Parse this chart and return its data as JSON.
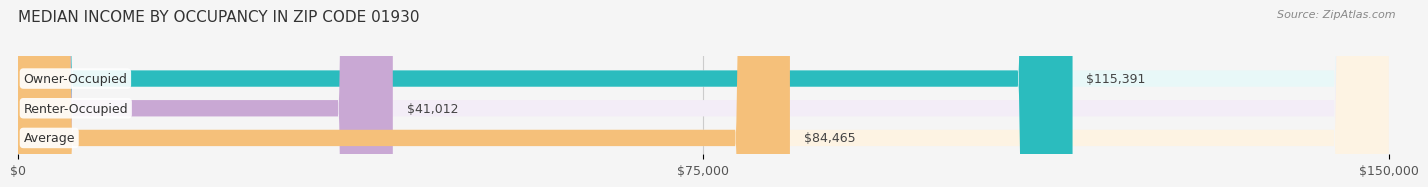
{
  "title": "MEDIAN INCOME BY OCCUPANCY IN ZIP CODE 01930",
  "source": "Source: ZipAtlas.com",
  "categories": [
    "Owner-Occupied",
    "Renter-Occupied",
    "Average"
  ],
  "values": [
    115391,
    41012,
    84465
  ],
  "labels": [
    "$115,391",
    "$41,012",
    "$84,465"
  ],
  "bar_colors": [
    "#2bbcbe",
    "#c9a8d4",
    "#f5c07a"
  ],
  "bar_bg_colors": [
    "#e8f8f8",
    "#f3edf7",
    "#fdf3e3"
  ],
  "xlim": [
    0,
    150000
  ],
  "xticks": [
    0,
    75000,
    150000
  ],
  "xtick_labels": [
    "$0",
    "$75,000",
    "$150,000"
  ],
  "title_fontsize": 11,
  "label_fontsize": 9,
  "tick_fontsize": 9,
  "source_fontsize": 8,
  "background_color": "#f5f5f5"
}
